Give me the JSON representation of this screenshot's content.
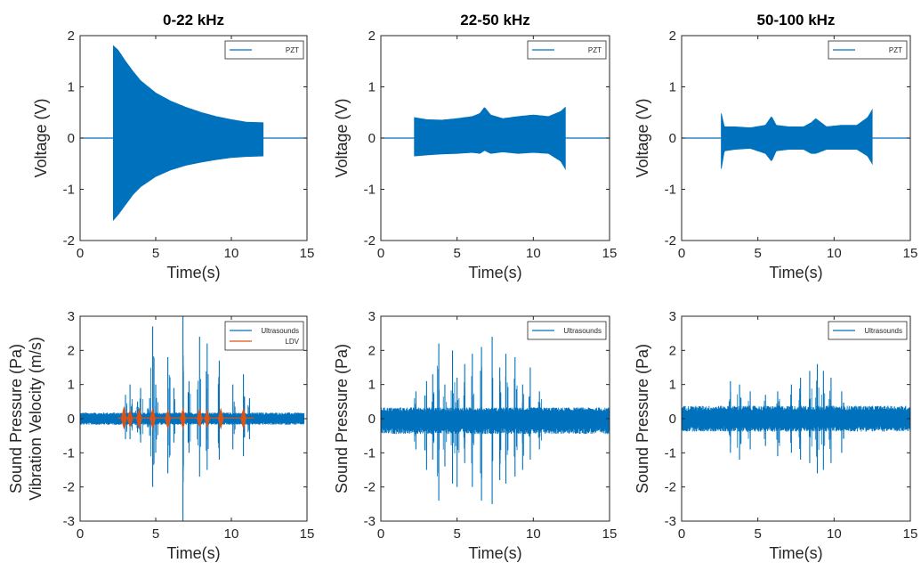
{
  "chart_data": [
    {
      "type": "line",
      "title": "0-22 kHz",
      "xlabel": "Time(s)",
      "ylabel": [
        "Voltage (V)"
      ],
      "xlim": [
        0,
        15
      ],
      "ylim": [
        -2,
        2
      ],
      "xticks": [
        "0",
        "5",
        "10",
        "15"
      ],
      "yticks": [
        "-2",
        "-1",
        "0",
        "1",
        "2"
      ],
      "legend": "top-right",
      "series": [
        {
          "name": "PZT",
          "color": "#0072BD",
          "style": "envelope",
          "baseline_range": [
            0,
            15
          ],
          "x": [
            2.2,
            2.5,
            3,
            3.5,
            4,
            5,
            6,
            7,
            8,
            9,
            10,
            11,
            12.1
          ],
          "upper": [
            1.8,
            1.72,
            1.5,
            1.3,
            1.12,
            0.88,
            0.72,
            0.6,
            0.5,
            0.42,
            0.36,
            0.31,
            0.3
          ],
          "lower": [
            -1.6,
            -1.5,
            -1.3,
            -1.1,
            -0.95,
            -0.75,
            -0.62,
            -0.53,
            -0.47,
            -0.42,
            -0.38,
            -0.36,
            -0.35
          ]
        }
      ]
    },
    {
      "type": "line",
      "title": "22-50 kHz",
      "xlabel": "Time(s)",
      "ylabel": [
        "Voltage (V)"
      ],
      "xlim": [
        0,
        15
      ],
      "ylim": [
        -2,
        2
      ],
      "xticks": [
        "0",
        "5",
        "10",
        "15"
      ],
      "yticks": [
        "-2",
        "-1",
        "0",
        "1",
        "2"
      ],
      "legend": "top-right",
      "series": [
        {
          "name": "PZT",
          "color": "#0072BD",
          "style": "envelope",
          "baseline_range": [
            0,
            15
          ],
          "x": [
            2.2,
            3,
            4,
            5,
            6,
            6.5,
            6.8,
            7.2,
            8,
            9,
            10,
            11,
            11.8,
            12.1
          ],
          "upper": [
            0.4,
            0.36,
            0.35,
            0.38,
            0.42,
            0.48,
            0.6,
            0.45,
            0.38,
            0.42,
            0.45,
            0.42,
            0.52,
            0.6
          ],
          "lower": [
            -0.35,
            -0.33,
            -0.31,
            -0.3,
            -0.28,
            -0.3,
            -0.24,
            -0.3,
            -0.27,
            -0.3,
            -0.28,
            -0.3,
            -0.45,
            -0.6
          ]
        }
      ]
    },
    {
      "type": "line",
      "title": "50-100 kHz",
      "xlabel": "Time(s)",
      "ylabel": [
        "Voltage (V)"
      ],
      "xlim": [
        0,
        15
      ],
      "ylim": [
        -2,
        2
      ],
      "xticks": [
        "0",
        "5",
        "10",
        "15"
      ],
      "yticks": [
        "-2",
        "-1",
        "0",
        "1",
        "2"
      ],
      "legend": "top-right",
      "series": [
        {
          "name": "PZT",
          "color": "#0072BD",
          "style": "envelope",
          "baseline_range": [
            0,
            15
          ],
          "x": [
            2.6,
            2.8,
            3.5,
            4.5,
            5.5,
            5.9,
            6.2,
            7,
            8,
            8.5,
            8.8,
            9.5,
            10.5,
            11.5,
            12.2,
            12.5
          ],
          "upper": [
            0.48,
            0.22,
            0.22,
            0.2,
            0.25,
            0.42,
            0.25,
            0.22,
            0.22,
            0.3,
            0.38,
            0.22,
            0.25,
            0.25,
            0.4,
            0.55
          ],
          "lower": [
            -0.6,
            -0.25,
            -0.22,
            -0.2,
            -0.3,
            -0.45,
            -0.25,
            -0.22,
            -0.22,
            -0.3,
            -0.3,
            -0.22,
            -0.22,
            -0.22,
            -0.35,
            -0.5
          ]
        }
      ]
    },
    {
      "type": "line",
      "title": "",
      "xlabel": "Time(s)",
      "ylabel": [
        "Sound Pressure (Pa)",
        "Vibration Velocity (m/s)"
      ],
      "xlim": [
        0,
        15
      ],
      "ylim": [
        -3,
        3
      ],
      "xticks": [
        "0",
        "5",
        "10",
        "15"
      ],
      "yticks": [
        "-3",
        "-2",
        "-1",
        "0",
        "1",
        "2",
        "3"
      ],
      "legend": "top-right",
      "series": [
        {
          "name": "Ultrasounds",
          "color": "#0072BD",
          "style": "noise",
          "x_range": [
            0,
            14.8
          ],
          "base_upper": 0.18,
          "base_lower": -0.18,
          "spikes": [
            {
              "x": 3.0,
              "up": 0.7,
              "down": -0.6
            },
            {
              "x": 3.3,
              "up": 1.0,
              "down": -0.6
            },
            {
              "x": 3.8,
              "up": 0.5,
              "down": -0.4
            },
            {
              "x": 4.0,
              "up": 0.9,
              "down": -0.7
            },
            {
              "x": 4.6,
              "up": 0.6,
              "down": -0.5
            },
            {
              "x": 4.8,
              "up": 2.7,
              "down": -2.0
            },
            {
              "x": 5.0,
              "up": 1.0,
              "down": -1.0
            },
            {
              "x": 5.8,
              "up": 1.8,
              "down": -1.6
            },
            {
              "x": 6.2,
              "up": 0.9,
              "down": -0.7
            },
            {
              "x": 6.8,
              "up": 3.0,
              "down": -3.0
            },
            {
              "x": 7.2,
              "up": 1.1,
              "down": -1.0
            },
            {
              "x": 7.9,
              "up": 2.4,
              "down": -1.7
            },
            {
              "x": 8.4,
              "up": 2.2,
              "down": -1.5
            },
            {
              "x": 9.2,
              "up": 1.7,
              "down": -1.2
            },
            {
              "x": 10.1,
              "up": 1.0,
              "down": -0.9
            },
            {
              "x": 10.8,
              "up": 1.3,
              "down": -1.1
            },
            {
              "x": 11.2,
              "up": 0.6,
              "down": -0.6
            }
          ]
        },
        {
          "name": "LDV",
          "color": "#D95319",
          "style": "pulses",
          "x_range": [
            2.5,
            11.5
          ],
          "baseline": 0.02,
          "pulses": [
            {
              "x": 2.9,
              "up": 0.35,
              "down": -0.3
            },
            {
              "x": 3.3,
              "up": 0.25,
              "down": -0.25
            },
            {
              "x": 3.9,
              "up": 0.3,
              "down": -0.3
            },
            {
              "x": 4.8,
              "up": 0.3,
              "down": -0.3
            },
            {
              "x": 5.8,
              "up": 0.25,
              "down": -0.3
            },
            {
              "x": 6.8,
              "up": 0.3,
              "down": -0.3
            },
            {
              "x": 7.9,
              "up": 0.3,
              "down": -0.25
            },
            {
              "x": 8.4,
              "up": 0.25,
              "down": -0.25
            },
            {
              "x": 9.3,
              "up": 0.3,
              "down": -0.3
            },
            {
              "x": 10.8,
              "up": 0.3,
              "down": -0.3
            }
          ]
        }
      ]
    },
    {
      "type": "line",
      "title": "",
      "xlabel": "Time(s)",
      "ylabel": [
        "Sound Pressure (Pa)"
      ],
      "xlim": [
        0,
        15
      ],
      "ylim": [
        -3,
        3
      ],
      "xticks": [
        "0",
        "5",
        "10",
        "15"
      ],
      "yticks": [
        "-3",
        "-2",
        "-1",
        "0",
        "1",
        "2",
        "3"
      ],
      "legend": "top-right",
      "series": [
        {
          "name": "Ultrasounds",
          "color": "#0072BD",
          "style": "noise",
          "x_range": [
            0,
            15
          ],
          "base_upper": 0.33,
          "base_lower": -0.45,
          "spikes": [
            {
              "x": 2.3,
              "up": 0.8,
              "down": -0.9
            },
            {
              "x": 3.0,
              "up": 1.1,
              "down": -1.5
            },
            {
              "x": 3.4,
              "up": 1.3,
              "down": -1.2
            },
            {
              "x": 3.8,
              "up": 2.2,
              "down": -2.4
            },
            {
              "x": 4.2,
              "up": 1.0,
              "down": -1.4
            },
            {
              "x": 4.7,
              "up": 2.0,
              "down": -1.9
            },
            {
              "x": 5.0,
              "up": 1.2,
              "down": -2.0
            },
            {
              "x": 5.5,
              "up": 1.6,
              "down": -1.3
            },
            {
              "x": 6.0,
              "up": 1.9,
              "down": -2.0
            },
            {
              "x": 6.6,
              "up": 2.1,
              "down": -2.4
            },
            {
              "x": 7.3,
              "up": 2.4,
              "down": -2.5
            },
            {
              "x": 7.8,
              "up": 1.5,
              "down": -1.8
            },
            {
              "x": 8.2,
              "up": 1.9,
              "down": -1.9
            },
            {
              "x": 8.8,
              "up": 1.8,
              "down": -1.7
            },
            {
              "x": 9.3,
              "up": 1.0,
              "down": -1.5
            },
            {
              "x": 9.8,
              "up": 1.5,
              "down": -1.2
            },
            {
              "x": 10.4,
              "up": 0.8,
              "down": -0.9
            }
          ]
        }
      ]
    },
    {
      "type": "line",
      "title": "",
      "xlabel": "Time(s)",
      "ylabel": [
        "Sound Pressure (Pa)"
      ],
      "xlim": [
        0,
        15
      ],
      "ylim": [
        -3,
        3
      ],
      "xticks": [
        "0",
        "5",
        "10",
        "15"
      ],
      "yticks": [
        "-3",
        "-2",
        "-1",
        "0",
        "1",
        "2",
        "3"
      ],
      "legend": "top-right",
      "series": [
        {
          "name": "Ultrasounds",
          "color": "#0072BD",
          "style": "noise",
          "x_range": [
            0,
            15
          ],
          "base_upper": 0.38,
          "base_lower": -0.38,
          "spikes": [
            {
              "x": 3.2,
              "up": 1.1,
              "down": -1.0
            },
            {
              "x": 3.8,
              "up": 1.0,
              "down": -1.2
            },
            {
              "x": 4.5,
              "up": 0.8,
              "down": -0.9
            },
            {
              "x": 5.5,
              "up": 0.7,
              "down": -0.8
            },
            {
              "x": 6.3,
              "up": 0.8,
              "down": -1.1
            },
            {
              "x": 7.2,
              "up": 1.0,
              "down": -1.0
            },
            {
              "x": 7.8,
              "up": 1.2,
              "down": -1.2
            },
            {
              "x": 8.4,
              "up": 1.4,
              "down": -1.3
            },
            {
              "x": 8.9,
              "up": 1.6,
              "down": -1.6
            },
            {
              "x": 9.3,
              "up": 1.4,
              "down": -1.5
            },
            {
              "x": 9.8,
              "up": 1.2,
              "down": -1.3
            },
            {
              "x": 10.5,
              "up": 0.8,
              "down": -1.0
            }
          ]
        }
      ]
    }
  ]
}
